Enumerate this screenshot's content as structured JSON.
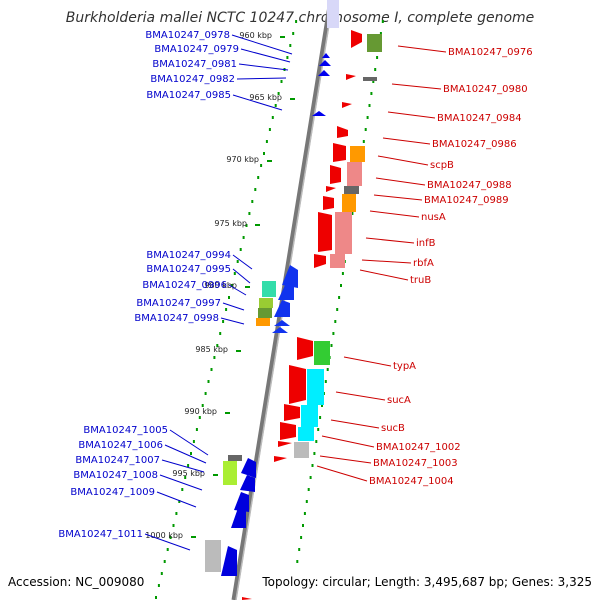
{
  "title": "Burkholderia mallei NCTC 10247 chromosome I, complete genome",
  "accession": "Accession: NC_009080",
  "topology": "Topology: circular; Length: 3,495,687 bp; Genes: 3,325",
  "kbp_ticks": [
    {
      "label": "960 kbp",
      "kb": 960
    },
    {
      "label": "965 kbp",
      "kb": 965
    },
    {
      "label": "970 kbp",
      "kb": 970
    },
    {
      "label": "975 kbp",
      "kb": 975
    },
    {
      "label": "980 kbp",
      "kb": 980
    },
    {
      "label": "985 kbp",
      "kb": 985
    },
    {
      "label": "990 kbp",
      "kb": 990
    },
    {
      "label": "995 kbp",
      "kb": 995
    },
    {
      "label": "1000 kbp",
      "kb": 1000
    }
  ],
  "left_labels": [
    "BMA10247_0978",
    "BMA10247_0979",
    "BMA10247_0981",
    "BMA10247_0982",
    "BMA10247_0985",
    "BMA10247_0994",
    "BMA10247_0995",
    "BMA10247_0996",
    "BMA10247_0997",
    "BMA10247_0998",
    "BMA10247_1005",
    "BMA10247_1006",
    "BMA10247_1007",
    "BMA10247_1008",
    "BMA10247_1009",
    "BMA10247_1011"
  ],
  "right_labels": [
    "BMA10247_0976",
    "BMA10247_0980",
    "BMA10247_0984",
    "BMA10247_0986",
    "scpB",
    "BMA10247_0988",
    "BMA10247_0989",
    "nusA",
    "infB",
    "rbfA",
    "truB",
    "typA",
    "sucA",
    "sucB",
    "BMA10247_1002",
    "BMA10247_1003",
    "BMA10247_1004"
  ],
  "colors": {
    "left": "#0000cc",
    "right": "#cc0000",
    "backbone": "#888888",
    "dots": "#009900"
  }
}
